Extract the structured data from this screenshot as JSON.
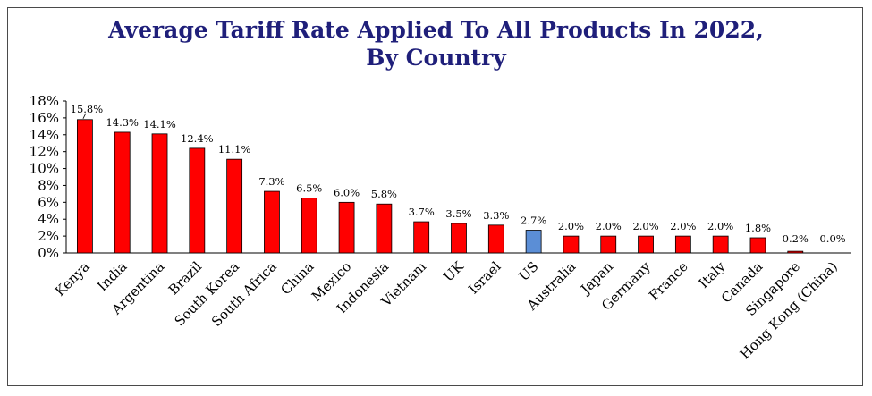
{
  "chart_data": {
    "type": "bar",
    "title_line1": "Average Tariff Rate Applied To All Products In 2022,",
    "title_line2": "By Country",
    "xlabel": "",
    "ylabel": "",
    "ylim": [
      0,
      18
    ],
    "yticks": [
      "0%",
      "2%",
      "4%",
      "6%",
      "8%",
      "10%",
      "12%",
      "14%",
      "16%",
      "18%"
    ],
    "ytick_values": [
      0,
      2,
      4,
      6,
      8,
      10,
      12,
      14,
      16,
      18
    ],
    "categories": [
      "Kenya",
      "India",
      "Argentina",
      "Brazil",
      "South Korea",
      "South Africa",
      "China",
      "Mexico",
      "Indonesia",
      "Vietnam",
      "UK",
      "Israel",
      "US",
      "Australia",
      "Japan",
      "Germany",
      "France",
      "Italy",
      "Canada",
      "Singapore",
      "Hong Kong (China)"
    ],
    "values": [
      15.8,
      14.3,
      14.1,
      12.4,
      11.1,
      7.3,
      6.5,
      6.0,
      5.8,
      3.7,
      3.5,
      3.3,
      2.7,
      2.0,
      2.0,
      2.0,
      2.0,
      2.0,
      1.8,
      0.2,
      0.0
    ],
    "data_labels": [
      "15.8%",
      "14.3%",
      "14.1%",
      "12.4%",
      "11.1%",
      "7.3%",
      "6.5%",
      "6.0%",
      "5.8%",
      "3.7%",
      "3.5%",
      "3.3%",
      "2.7%",
      "2.0%",
      "2.0%",
      "2.0%",
      "2.0%",
      "2.0%",
      "1.8%",
      "0.2%",
      "0.0%"
    ],
    "highlight_category": "US",
    "grid": false,
    "legend": "none",
    "colors": {
      "bar": "#ff0000",
      "highlight": "#5b8ed6",
      "bar_outline": "#000000",
      "title": "#1f1f7a"
    }
  }
}
